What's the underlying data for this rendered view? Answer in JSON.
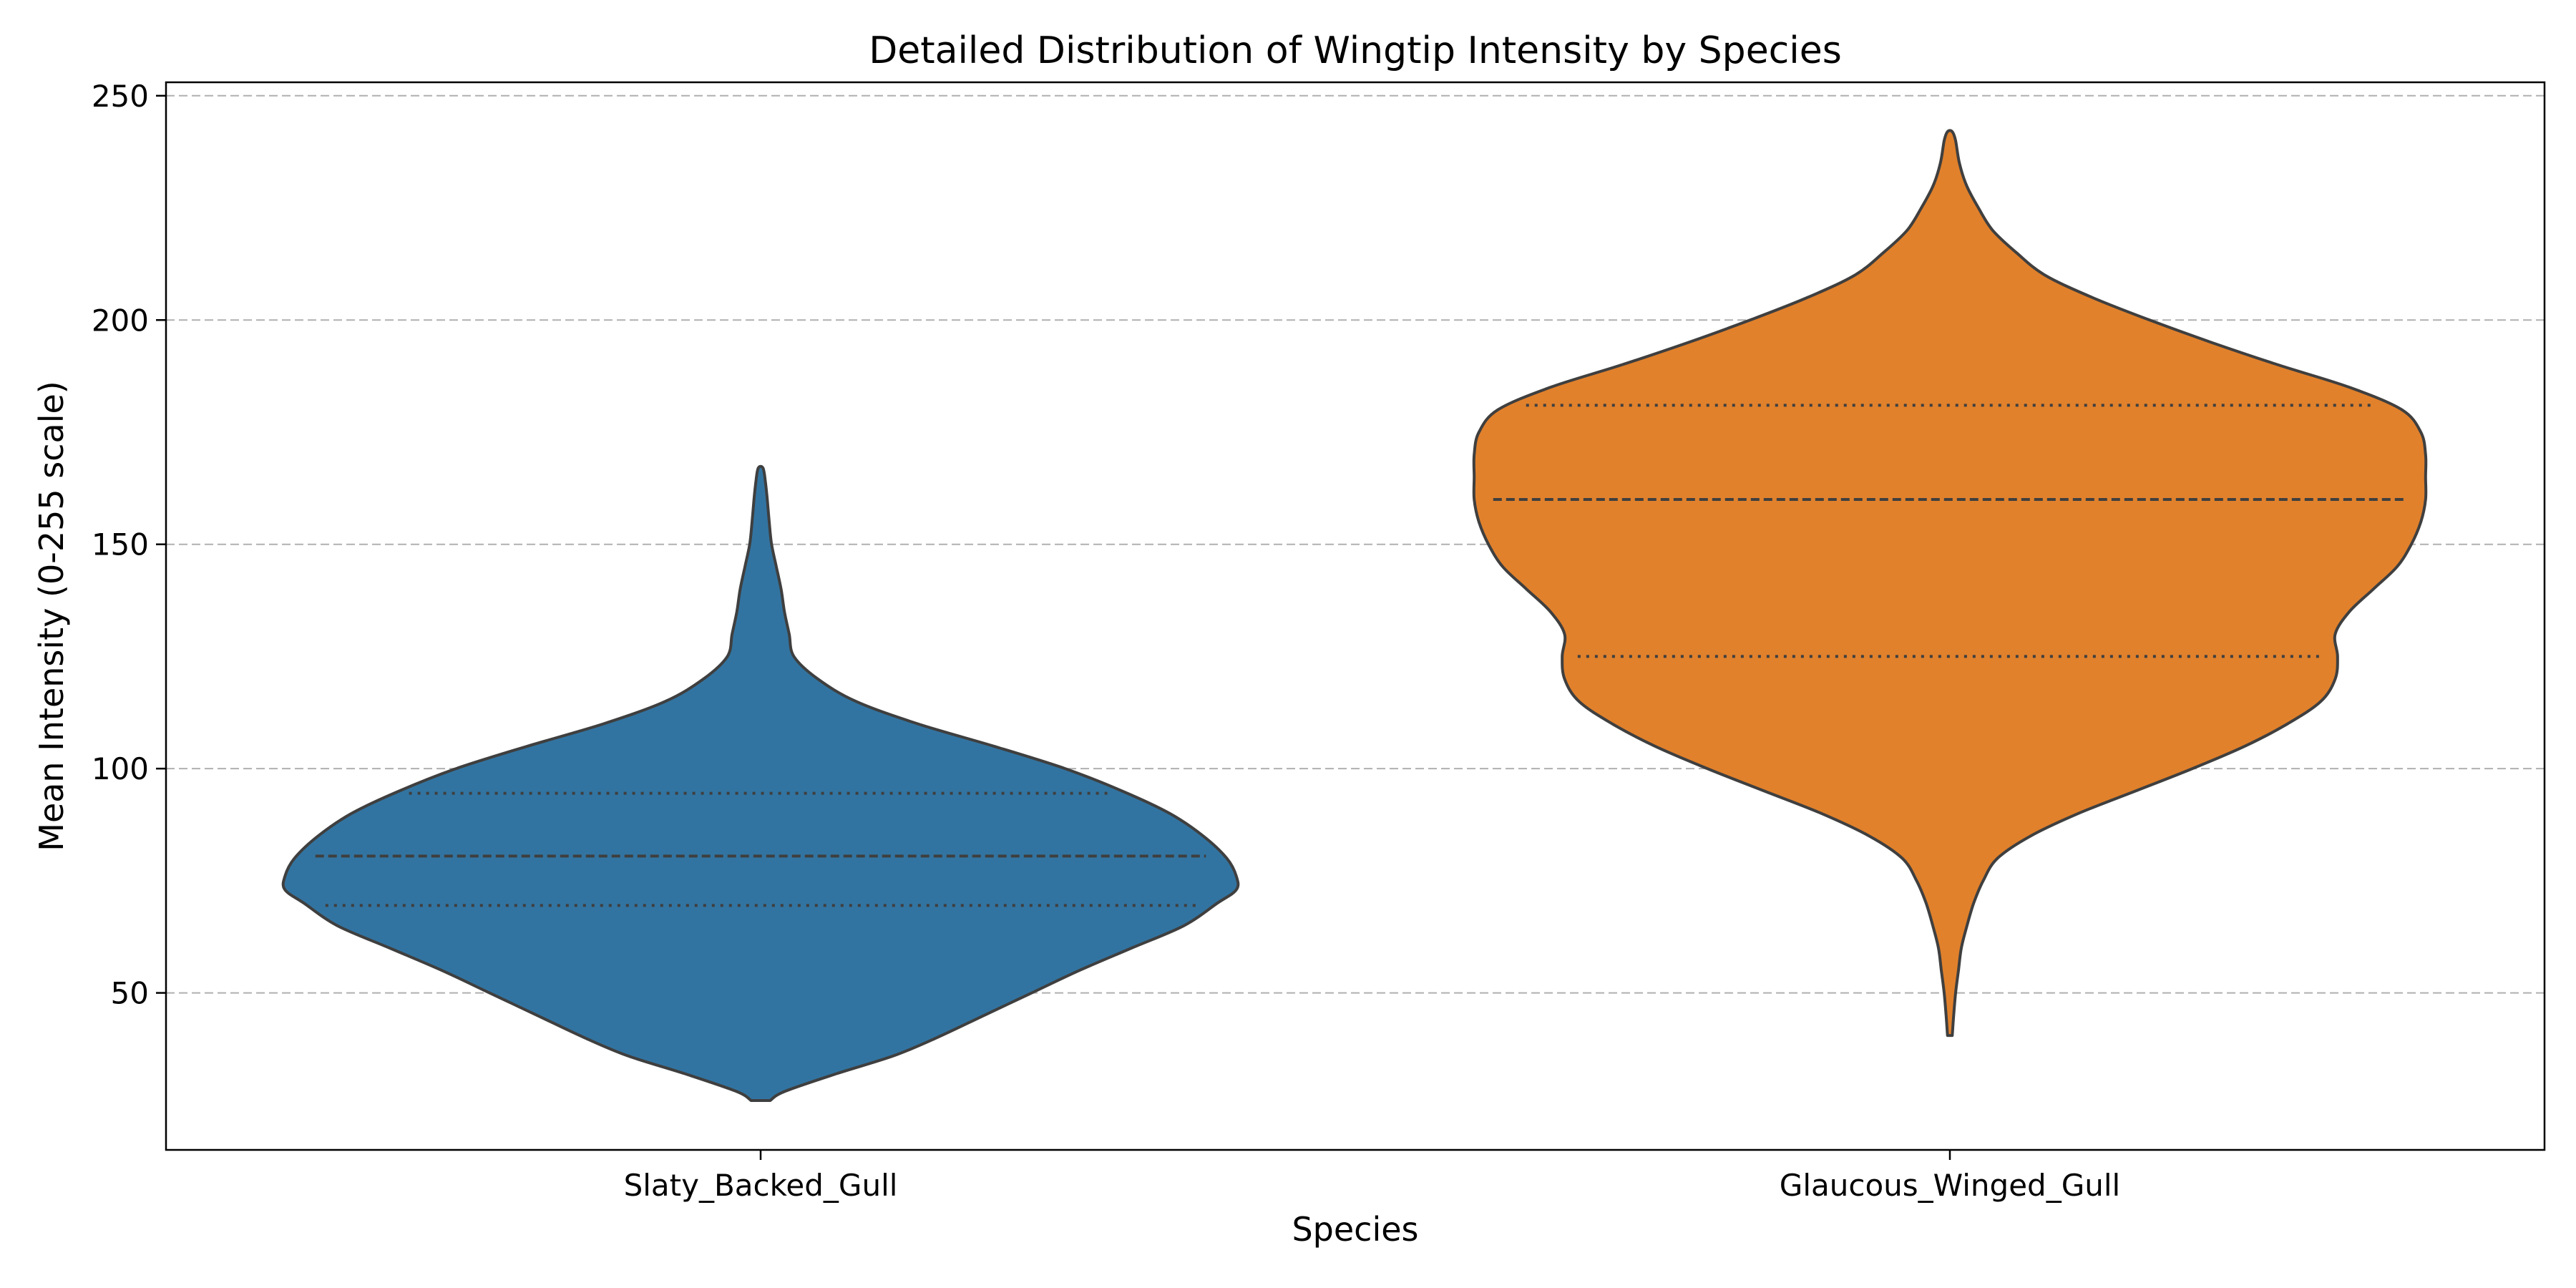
{
  "chart_data": {
    "type": "violin",
    "title": "Detailed Distribution of Wingtip Intensity by Species",
    "xlabel": "Species",
    "ylabel": "Mean Intensity (0-255 scale)",
    "ylim": [
      15,
      253
    ],
    "yticks": [
      50,
      100,
      150,
      200,
      250
    ],
    "grid": "horizontal dashed",
    "inner": "quartiles",
    "categories": [
      "Slaty_Backed_Gull",
      "Glaucous_Winged_Gull"
    ],
    "series": [
      {
        "category": "Slaty_Backed_Gull",
        "color": "#3274a1",
        "min": 26,
        "q1": 69.5,
        "median": 80.5,
        "q3": 94.5,
        "max": 167,
        "density": [
          [
            26,
            0.02
          ],
          [
            28,
            0.05
          ],
          [
            32,
            0.16
          ],
          [
            36,
            0.28
          ],
          [
            40,
            0.37
          ],
          [
            45,
            0.47
          ],
          [
            50,
            0.57
          ],
          [
            55,
            0.67
          ],
          [
            60,
            0.78
          ],
          [
            65,
            0.89
          ],
          [
            70,
            0.96
          ],
          [
            73,
            1.0
          ],
          [
            76,
            1.0
          ],
          [
            80,
            0.98
          ],
          [
            85,
            0.93
          ],
          [
            90,
            0.86
          ],
          [
            95,
            0.76
          ],
          [
            100,
            0.64
          ],
          [
            105,
            0.49
          ],
          [
            110,
            0.33
          ],
          [
            115,
            0.2
          ],
          [
            120,
            0.12
          ],
          [
            125,
            0.07
          ],
          [
            130,
            0.06
          ],
          [
            135,
            0.05
          ],
          [
            140,
            0.043
          ],
          [
            145,
            0.033
          ],
          [
            150,
            0.023
          ],
          [
            155,
            0.018
          ],
          [
            160,
            0.014
          ],
          [
            164,
            0.01
          ],
          [
            167,
            0.005
          ]
        ]
      },
      {
        "category": "Glaucous_Winged_Gull",
        "color": "#e1812c",
        "min": 40.5,
        "q1": 125,
        "median": 160,
        "q3": 181,
        "max": 242,
        "density": [
          [
            40.5,
            0.005
          ],
          [
            45,
            0.008
          ],
          [
            50,
            0.012
          ],
          [
            55,
            0.018
          ],
          [
            60,
            0.024
          ],
          [
            65,
            0.036
          ],
          [
            70,
            0.05
          ],
          [
            75,
            0.07
          ],
          [
            80,
            0.1
          ],
          [
            85,
            0.17
          ],
          [
            90,
            0.27
          ],
          [
            95,
            0.39
          ],
          [
            100,
            0.51
          ],
          [
            105,
            0.62
          ],
          [
            110,
            0.71
          ],
          [
            115,
            0.78
          ],
          [
            120,
            0.81
          ],
          [
            125,
            0.815
          ],
          [
            130,
            0.81
          ],
          [
            135,
            0.84
          ],
          [
            140,
            0.89
          ],
          [
            145,
            0.94
          ],
          [
            150,
            0.97
          ],
          [
            155,
            0.99
          ],
          [
            160,
            1.0
          ],
          [
            165,
            1.0
          ],
          [
            170,
            1.0
          ],
          [
            175,
            0.99
          ],
          [
            180,
            0.95
          ],
          [
            185,
            0.84
          ],
          [
            190,
            0.69
          ],
          [
            195,
            0.55
          ],
          [
            200,
            0.42
          ],
          [
            205,
            0.3
          ],
          [
            210,
            0.2
          ],
          [
            215,
            0.14
          ],
          [
            220,
            0.09
          ],
          [
            225,
            0.06
          ],
          [
            230,
            0.035
          ],
          [
            235,
            0.02
          ],
          [
            240,
            0.012
          ],
          [
            242,
            0.005
          ]
        ]
      }
    ]
  }
}
